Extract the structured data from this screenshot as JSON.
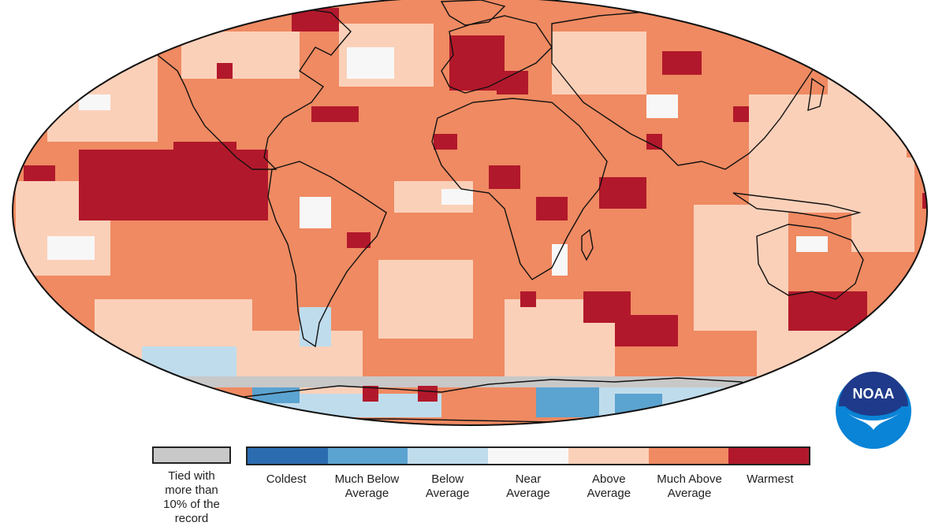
{
  "legend": {
    "tied": {
      "label": "Tied with more than 10% of the record",
      "lines": [
        "Tied with",
        "more than",
        "10% of the",
        "record"
      ],
      "color": "#c8c8c8"
    },
    "categories": [
      {
        "lines": [
          "Coldest"
        ],
        "color": "#2b6cb0"
      },
      {
        "lines": [
          "Much Below",
          "Average"
        ],
        "color": "#5ba3d0"
      },
      {
        "lines": [
          "Below",
          "Average"
        ],
        "color": "#bfdcec"
      },
      {
        "lines": [
          "Near",
          "Average"
        ],
        "color": "#f7f7f7"
      },
      {
        "lines": [
          "Above",
          "Average"
        ],
        "color": "#fbd0b9"
      },
      {
        "lines": [
          "Much Above",
          "Average"
        ],
        "color": "#ef8a62"
      },
      {
        "lines": [
          "Warmest"
        ],
        "color": "#b2182b"
      }
    ]
  },
  "logo": {
    "text": "NOAA",
    "colors": {
      "navy": "#1f3a8a",
      "blue": "#0a84d6"
    }
  },
  "map": {
    "ocean_base": "#ef8a62",
    "land_outline": "#111111"
  }
}
